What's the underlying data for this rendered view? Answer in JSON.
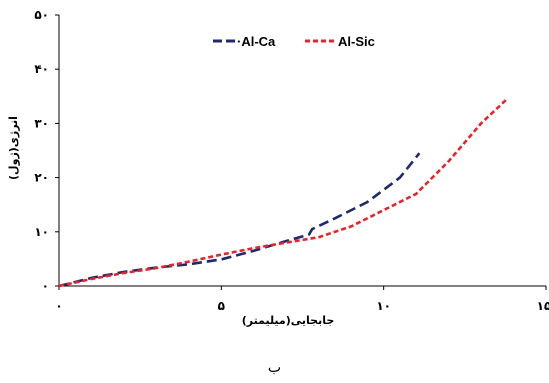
{
  "chart_data": {
    "type": "line",
    "xlabel": "جابجایی(میلیمتر)",
    "ylabel": "انرژی(ژول)",
    "xlim": [
      0,
      15
    ],
    "ylim": [
      0,
      50
    ],
    "x_ticks": [
      0,
      5,
      10,
      15
    ],
    "y_ticks": [
      0,
      10,
      20,
      30,
      40,
      50
    ],
    "x_tick_labels": [
      "۰",
      "۵",
      "۱۰",
      "۱۵"
    ],
    "y_tick_labels": [
      "۰",
      "۱۰",
      "۲۰",
      "۳۰",
      "۴۰",
      "۵۰"
    ],
    "grid": false,
    "legend": "top",
    "series": [
      {
        "name": "Al-Ca",
        "color": "#1f2a6b",
        "dash": "long-dash",
        "x": [
          0,
          1,
          2,
          3,
          4,
          5,
          6,
          7,
          7.7,
          7.8,
          8.5,
          9.5,
          10.5,
          11.1
        ],
        "y": [
          0,
          1.5,
          2.6,
          3.4,
          4.0,
          4.9,
          6.5,
          8.3,
          9.5,
          10.5,
          12.5,
          15.5,
          20.0,
          24.5
        ]
      },
      {
        "name": "Al-Sic",
        "color": "#e8232a",
        "dash": "short-dash",
        "x": [
          0,
          1,
          2,
          3,
          4,
          5,
          6,
          7,
          8,
          9,
          10,
          11,
          12,
          13,
          13.8
        ],
        "y": [
          0,
          1.3,
          2.4,
          3.3,
          4.5,
          5.8,
          7.0,
          8.0,
          9.0,
          11.0,
          14.0,
          17.0,
          23.0,
          30.0,
          34.5
        ]
      }
    ]
  },
  "legend": {
    "items": [
      {
        "label": "·Al-Ca",
        "color": "#1f2a6b"
      },
      {
        "label": "Al-Sic",
        "color": "#e8232a"
      }
    ]
  },
  "caption": "ب"
}
